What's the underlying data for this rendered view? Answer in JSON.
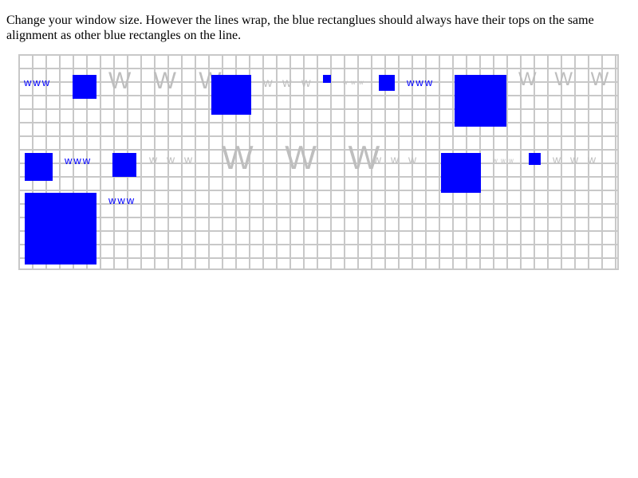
{
  "instructions": {
    "text": "Change your window size. However the lines wrap, the blue rectanglues should always have their tops on the same alignment as other blue rectangles on the line."
  },
  "colors": {
    "blue": "#0000ff",
    "gray": "#bebebe",
    "grid": "#c8c8c8"
  },
  "line1": {
    "text_a": "www",
    "text_b": "W W W",
    "text_c": "w w w",
    "text_d": "w w w",
    "text_e": "www",
    "text_f": "W W W"
  },
  "line2": {
    "text_a": "www",
    "text_b": "w w w",
    "text_c": "W W W",
    "text_d": "w w w",
    "text_e": "w w w",
    "text_f": "w w w"
  },
  "line3": {
    "text_a": "www"
  }
}
